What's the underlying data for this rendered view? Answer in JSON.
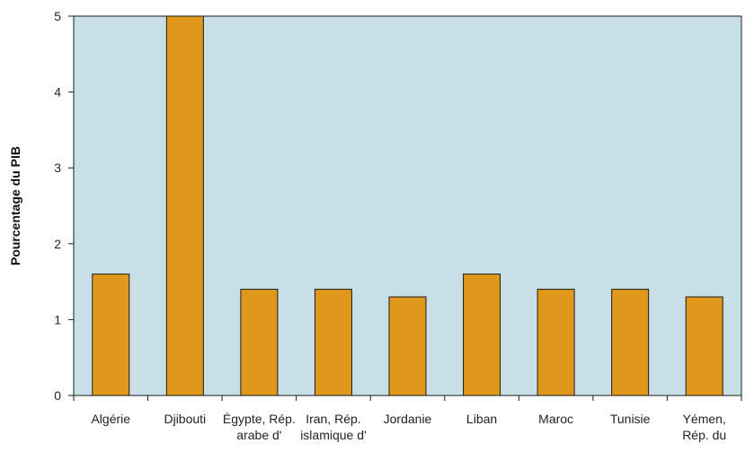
{
  "colors": {
    "plot_background": "#c9dfe8",
    "bar_fill": "#e0981c",
    "bar_stroke": "#1a1a1a",
    "axis": "#1a1a1a"
  },
  "chart_data": {
    "type": "bar",
    "title": "",
    "xlabel": "",
    "ylabel": "Pourcentage du PIB",
    "ylim": [
      0,
      5
    ],
    "yticks": [
      0,
      1,
      2,
      3,
      4,
      5
    ],
    "grid": false,
    "categories": [
      "Algérie",
      "Djibouti",
      "Égypte, Rép. arabe d'",
      "Iran, Rép. islamique d'",
      "Jordanie",
      "Liban",
      "Maroc",
      "Tunisie",
      "Yémen, Rép. du"
    ],
    "category_label_lines": [
      [
        "Algérie"
      ],
      [
        "Djibouti"
      ],
      [
        "Égypte, Rép.",
        "arabe d'"
      ],
      [
        "Iran, Rép.",
        "islamique d'"
      ],
      [
        "Jordanie"
      ],
      [
        "Liban"
      ],
      [
        "Maroc"
      ],
      [
        "Tunisie"
      ],
      [
        "Yémen,",
        "Rép. du"
      ]
    ],
    "values": [
      1.6,
      5.0,
      1.4,
      1.4,
      1.3,
      1.6,
      1.4,
      1.4,
      1.3
    ]
  }
}
